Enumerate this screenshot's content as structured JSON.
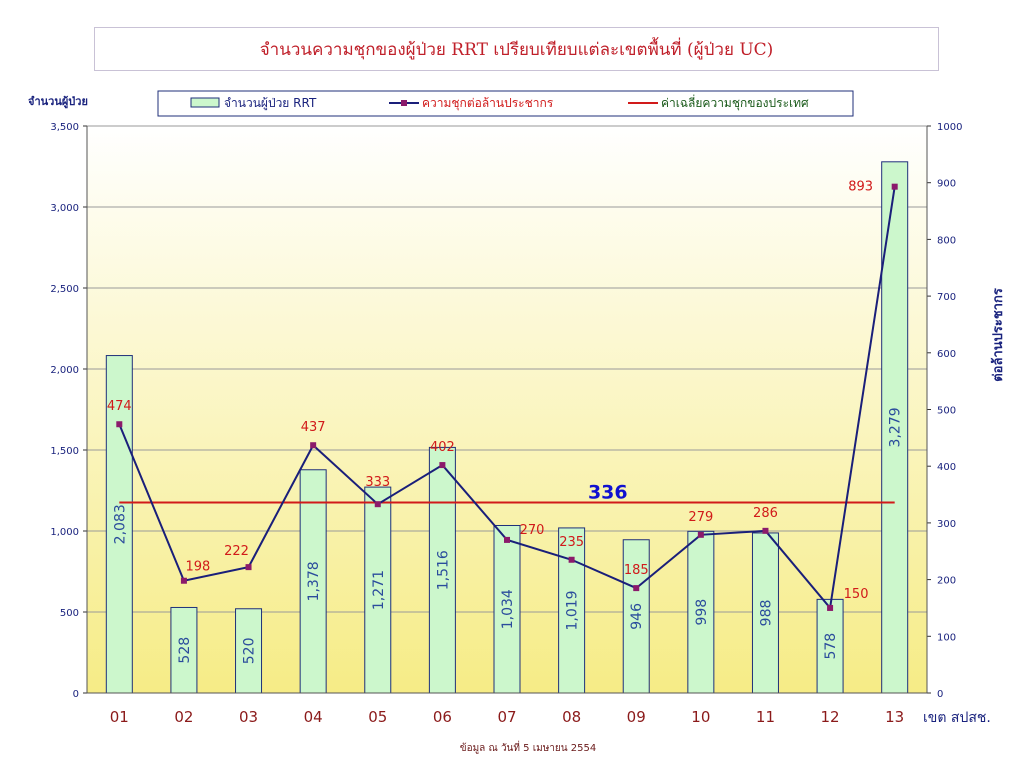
{
  "chart_data": {
    "type": "bar",
    "title": "จำนวนความชุกของผู้ป่วย RRT เปรียบเทียบแต่ละเขตพื้นที่ (ผู้ป่วย UC)",
    "categories": [
      "01",
      "02",
      "03",
      "04",
      "05",
      "06",
      "07",
      "08",
      "09",
      "10",
      "11",
      "12",
      "13"
    ],
    "xlabel": "เขต สปสช.",
    "ylabel_left": "จำนวนผู้ป่วย",
    "ylabel_right": "ต่อล้านประชากร",
    "ylim_left": [
      0,
      3500
    ],
    "ylim_right": [
      0,
      1000
    ],
    "yticks_left": [
      "0",
      "500",
      "1,000",
      "1,500",
      "2,000",
      "2,500",
      "3,000",
      "3,500"
    ],
    "yticks_right": [
      "0",
      "100",
      "200",
      "300",
      "400",
      "500",
      "600",
      "700",
      "800",
      "900",
      "1000"
    ],
    "series": [
      {
        "name": "จำนวนผู้ป่วย RRT",
        "kind": "bar",
        "axis": "left",
        "values": [
          2083,
          528,
          520,
          1378,
          1271,
          1516,
          1034,
          1019,
          946,
          998,
          988,
          578,
          3279
        ],
        "labels": [
          "2,083",
          "528",
          "520",
          "1,378",
          "1,271",
          "1,516",
          "1,034",
          "1,019",
          "946",
          "998",
          "988",
          "578",
          "3,279"
        ],
        "color": "#ccf7cc",
        "edge": "#1f2f7a"
      },
      {
        "name": "ความชุกต่อล้านประชากร",
        "kind": "line",
        "axis": "right",
        "values": [
          474,
          198,
          222,
          437,
          333,
          402,
          270,
          235,
          185,
          279,
          286,
          150,
          893
        ],
        "labels": [
          "474",
          "198",
          "222",
          "437",
          "333",
          "402",
          "270",
          "235",
          "185",
          "279",
          "286",
          "150",
          "893"
        ],
        "color": "#1a1f7a",
        "marker_color": "#8b1a6b"
      },
      {
        "name": "ค่าเฉลี่ยความชุกของประเทศ",
        "kind": "hline",
        "axis": "right",
        "value": 336,
        "label": "336",
        "color": "#d11a1a"
      }
    ],
    "legend": "top",
    "background": "gradient white to yellow",
    "grid": true
  },
  "footer": {
    "source_note": "ข้อมูล ณ วันที่ 5 เมษายน 2554"
  },
  "colors": {
    "axis_text": "#1a237e",
    "line_label": "#d11a1a",
    "bar_label": "#2a4c9c",
    "avg_label": "#1010d0",
    "category_label": "#8b1a1a"
  }
}
